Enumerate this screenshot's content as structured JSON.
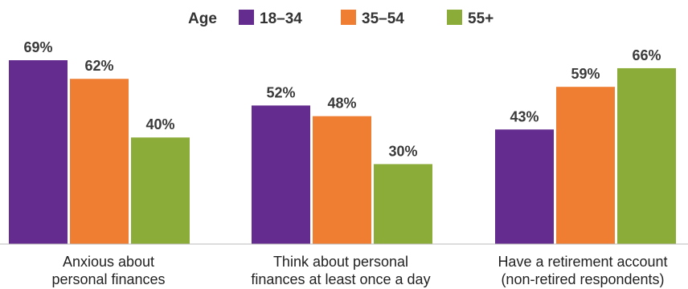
{
  "chart_data": {
    "type": "bar",
    "legend_title": "Age",
    "legend_position": "top-center",
    "categories": [
      [
        "Anxious about",
        "personal finances"
      ],
      [
        "Think about personal",
        "finances at least once a day"
      ],
      [
        "Have a retirement account",
        "(non-retired respondents)"
      ]
    ],
    "series": [
      {
        "name": "18–34",
        "color": "#652c8f",
        "values": [
          69,
          52,
          43
        ]
      },
      {
        "name": "35–54",
        "color": "#ef7d32",
        "values": [
          62,
          48,
          59
        ]
      },
      {
        "name": "55+",
        "color": "#8cac3a",
        "values": [
          40,
          30,
          66
        ]
      }
    ],
    "value_suffix": "%",
    "ylim": [
      0,
      69
    ],
    "grid": false
  }
}
